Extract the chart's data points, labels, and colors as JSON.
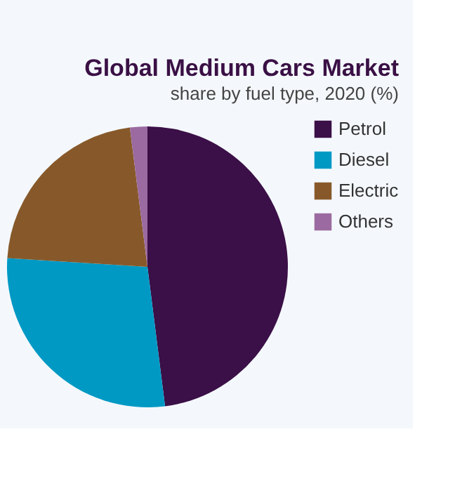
{
  "chart_data": {
    "type": "pie",
    "title": "Global Medium Cars Market",
    "subtitle": "share by fuel type, 2020 (%)",
    "categories": [
      "Petrol",
      "Diesel",
      "Electric",
      "Others"
    ],
    "values": [
      48,
      28,
      22,
      2
    ],
    "colors": [
      "#3b0f47",
      "#0099c4",
      "#87592a",
      "#9b6aa0"
    ],
    "legend": "right"
  }
}
